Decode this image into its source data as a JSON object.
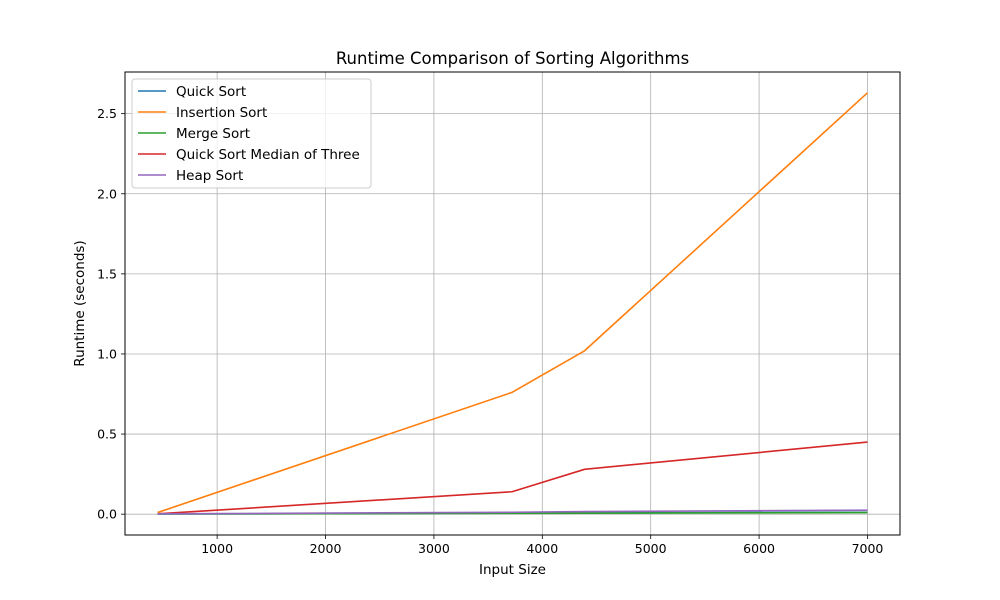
{
  "chart_data": {
    "type": "line",
    "title": "Runtime Comparison of Sorting Algorithms",
    "xlabel": "Input Size",
    "ylabel": "Runtime (seconds)",
    "xlim": [
      150,
      7300
    ],
    "ylim": [
      -0.13,
      2.76
    ],
    "xticks": [
      1000,
      2000,
      3000,
      4000,
      5000,
      6000,
      7000
    ],
    "yticks": [
      0.0,
      0.5,
      1.0,
      1.5,
      2.0,
      2.5
    ],
    "ytick_labels": [
      "0.0",
      "0.5",
      "1.0",
      "1.5",
      "2.0",
      "2.5"
    ],
    "grid": true,
    "legend_position": "top-left",
    "x": [
      450,
      3720,
      4390,
      7000
    ],
    "series": [
      {
        "name": "Quick Sort",
        "color": "#1f77b4",
        "values": [
          0.001,
          0.006,
          0.008,
          0.012
        ]
      },
      {
        "name": "Insertion Sort",
        "color": "#ff7f0e",
        "values": [
          0.01,
          0.76,
          1.02,
          2.63
        ]
      },
      {
        "name": "Merge Sort",
        "color": "#2ca02c",
        "values": [
          0.001,
          0.005,
          0.006,
          0.01
        ]
      },
      {
        "name": "Quick Sort Median of Three",
        "color": "#d62728",
        "values": [
          0.002,
          0.14,
          0.28,
          0.45
        ]
      },
      {
        "name": "Heap Sort",
        "color": "#9467bd",
        "values": [
          0.002,
          0.012,
          0.016,
          0.025
        ]
      }
    ]
  }
}
